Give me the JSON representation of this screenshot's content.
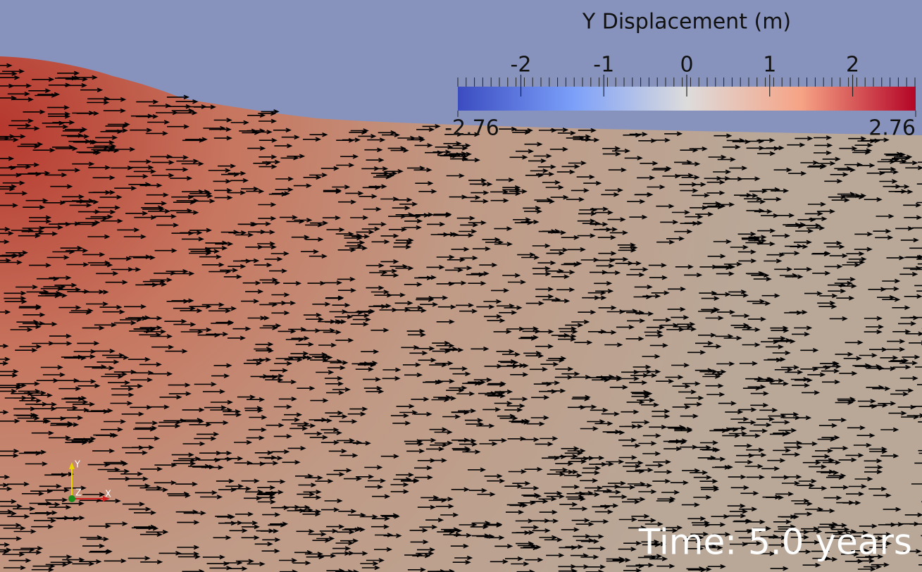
{
  "colorbar": {
    "title": "Y Displacement (m)",
    "range": [
      -2.76,
      2.76
    ],
    "ticks": [
      -2,
      -1,
      0,
      1,
      2
    ]
  },
  "axes": {
    "y": "Y",
    "z": "Z",
    "x": "X"
  },
  "time": "Time: 5.0 years"
}
